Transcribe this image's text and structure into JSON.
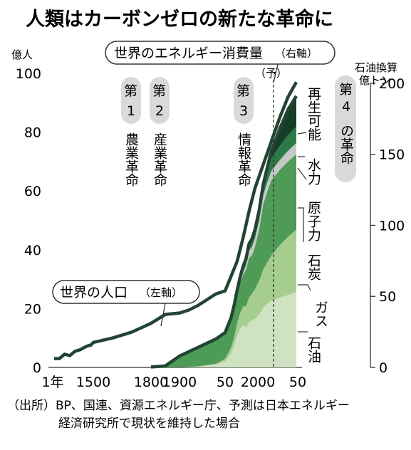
{
  "title": "人類はカーボンゼロの新たな革命に",
  "source_lines": [
    "（出所）BP、国連、資源エネルギー庁、予測は日本エネルギー",
    "経済研究所で現状を維持した場合"
  ],
  "colors": {
    "population": "#234433",
    "energy_total": "#234433",
    "oil": "#cfe3c2",
    "gas": "#a6cd90",
    "coal": "#4e9a57",
    "nuclear": "#c7c7c7",
    "hydro": "#2b7a45",
    "renewable": "#153d28",
    "badge": "#d9d9d9"
  },
  "revolutions": [
    {
      "number": "1",
      "label": "農業革命",
      "prefix": "第"
    },
    {
      "number": "2",
      "label": "産業革命",
      "prefix": "第"
    },
    {
      "number": "3",
      "label": "情報革命",
      "prefix": "第"
    },
    {
      "number": "4",
      "label": "の革命",
      "prefix": "第"
    }
  ],
  "forecast_label": "（予）",
  "chart_data": {
    "type": "area",
    "x_tick_labels": [
      "1年",
      "1500",
      "1800",
      "1900",
      "50",
      "2000",
      "50"
    ],
    "left_axis": {
      "unit": "億人",
      "range": [
        0,
        100
      ],
      "ticks": [
        0,
        20,
        40,
        60,
        80,
        100
      ]
    },
    "right_axis": {
      "unit_lines": [
        "石油換算",
        "億トン"
      ],
      "range": [
        0,
        212
      ],
      "ticks": [
        0,
        50,
        100,
        150,
        200
      ]
    },
    "forecast_start": 2018,
    "population": {
      "name": "世界の人口",
      "axis_note": "（左軸）",
      "x": [
        1,
        200,
        400,
        600,
        800,
        1000,
        1200,
        1340,
        1400,
        1500,
        1600,
        1700,
        1750,
        1800,
        1850,
        1900,
        1910,
        1920,
        1930,
        1940,
        1950,
        1960,
        1970,
        1980,
        1990,
        2000,
        2010,
        2020,
        2030,
        2040,
        2050
      ],
      "values": [
        3,
        3,
        4.5,
        4,
        5.5,
        6,
        7,
        7.5,
        7.5,
        8.5,
        10,
        12,
        13.5,
        15,
        18,
        18.5,
        19.5,
        21,
        23,
        25,
        26,
        31,
        36,
        44,
        53,
        61,
        69,
        77,
        85,
        92,
        97
      ]
    },
    "energy": {
      "name": "世界のエネルギー消費量",
      "axis_note": "（右軸）",
      "x": [
        1800,
        1850,
        1900,
        1920,
        1940,
        1950,
        1960,
        1965,
        1970,
        1975,
        1980,
        1985,
        1990,
        1995,
        2000,
        2005,
        2010,
        2015,
        2018,
        2020,
        2030,
        2040,
        2050
      ],
      "series": [
        {
          "name": "石油",
          "values": [
            0,
            0,
            0,
            0.5,
            2,
            4,
            10,
            15,
            22,
            27,
            30,
            28,
            32,
            33,
            34,
            37,
            42,
            45,
            46,
            47,
            49,
            51,
            53
          ]
        },
        {
          "name": "ガス",
          "values": [
            0,
            0,
            0,
            0.2,
            0.6,
            2,
            4,
            6,
            9,
            11,
            13,
            15,
            17,
            19,
            21,
            24,
            27,
            29,
            31,
            32,
            37,
            41,
            44
          ]
        },
        {
          "name": "石炭",
          "values": [
            0.3,
            1,
            8,
            13,
            16,
            17,
            19,
            20,
            20,
            21,
            22,
            26,
            28,
            27,
            30,
            36,
            46,
            50,
            52,
            53,
            53,
            53,
            53
          ]
        },
        {
          "name": "原子力",
          "values": [
            0,
            0,
            0,
            0,
            0,
            0,
            0,
            0,
            0.2,
            1,
            2,
            3,
            5,
            6,
            6,
            6.5,
            6.5,
            6.5,
            6.5,
            6.5,
            7,
            7.5,
            8
          ]
        },
        {
          "name": "水力",
          "values": [
            0,
            0,
            0,
            0.5,
            1,
            1.5,
            2,
            2.5,
            3,
            3.5,
            4,
            4.5,
            5,
            5.5,
            6,
            6.5,
            7.5,
            8.5,
            9,
            9,
            10,
            11,
            11.5
          ]
        },
        {
          "name": "再生可能",
          "values": [
            0,
            0,
            0,
            0,
            0,
            0,
            0,
            0,
            0,
            0,
            0,
            0,
            0,
            0,
            0,
            0,
            0.5,
            2,
            4,
            5,
            12,
            18,
            22
          ]
        }
      ],
      "total": [
        0.3,
        1,
        8,
        14,
        20,
        24.5,
        35,
        43.5,
        54,
        63.5,
        71,
        76.5,
        87,
        90.5,
        97,
        110.5,
        129,
        141,
        148,
        152.5,
        168,
        181.5,
        191
      ]
    }
  }
}
